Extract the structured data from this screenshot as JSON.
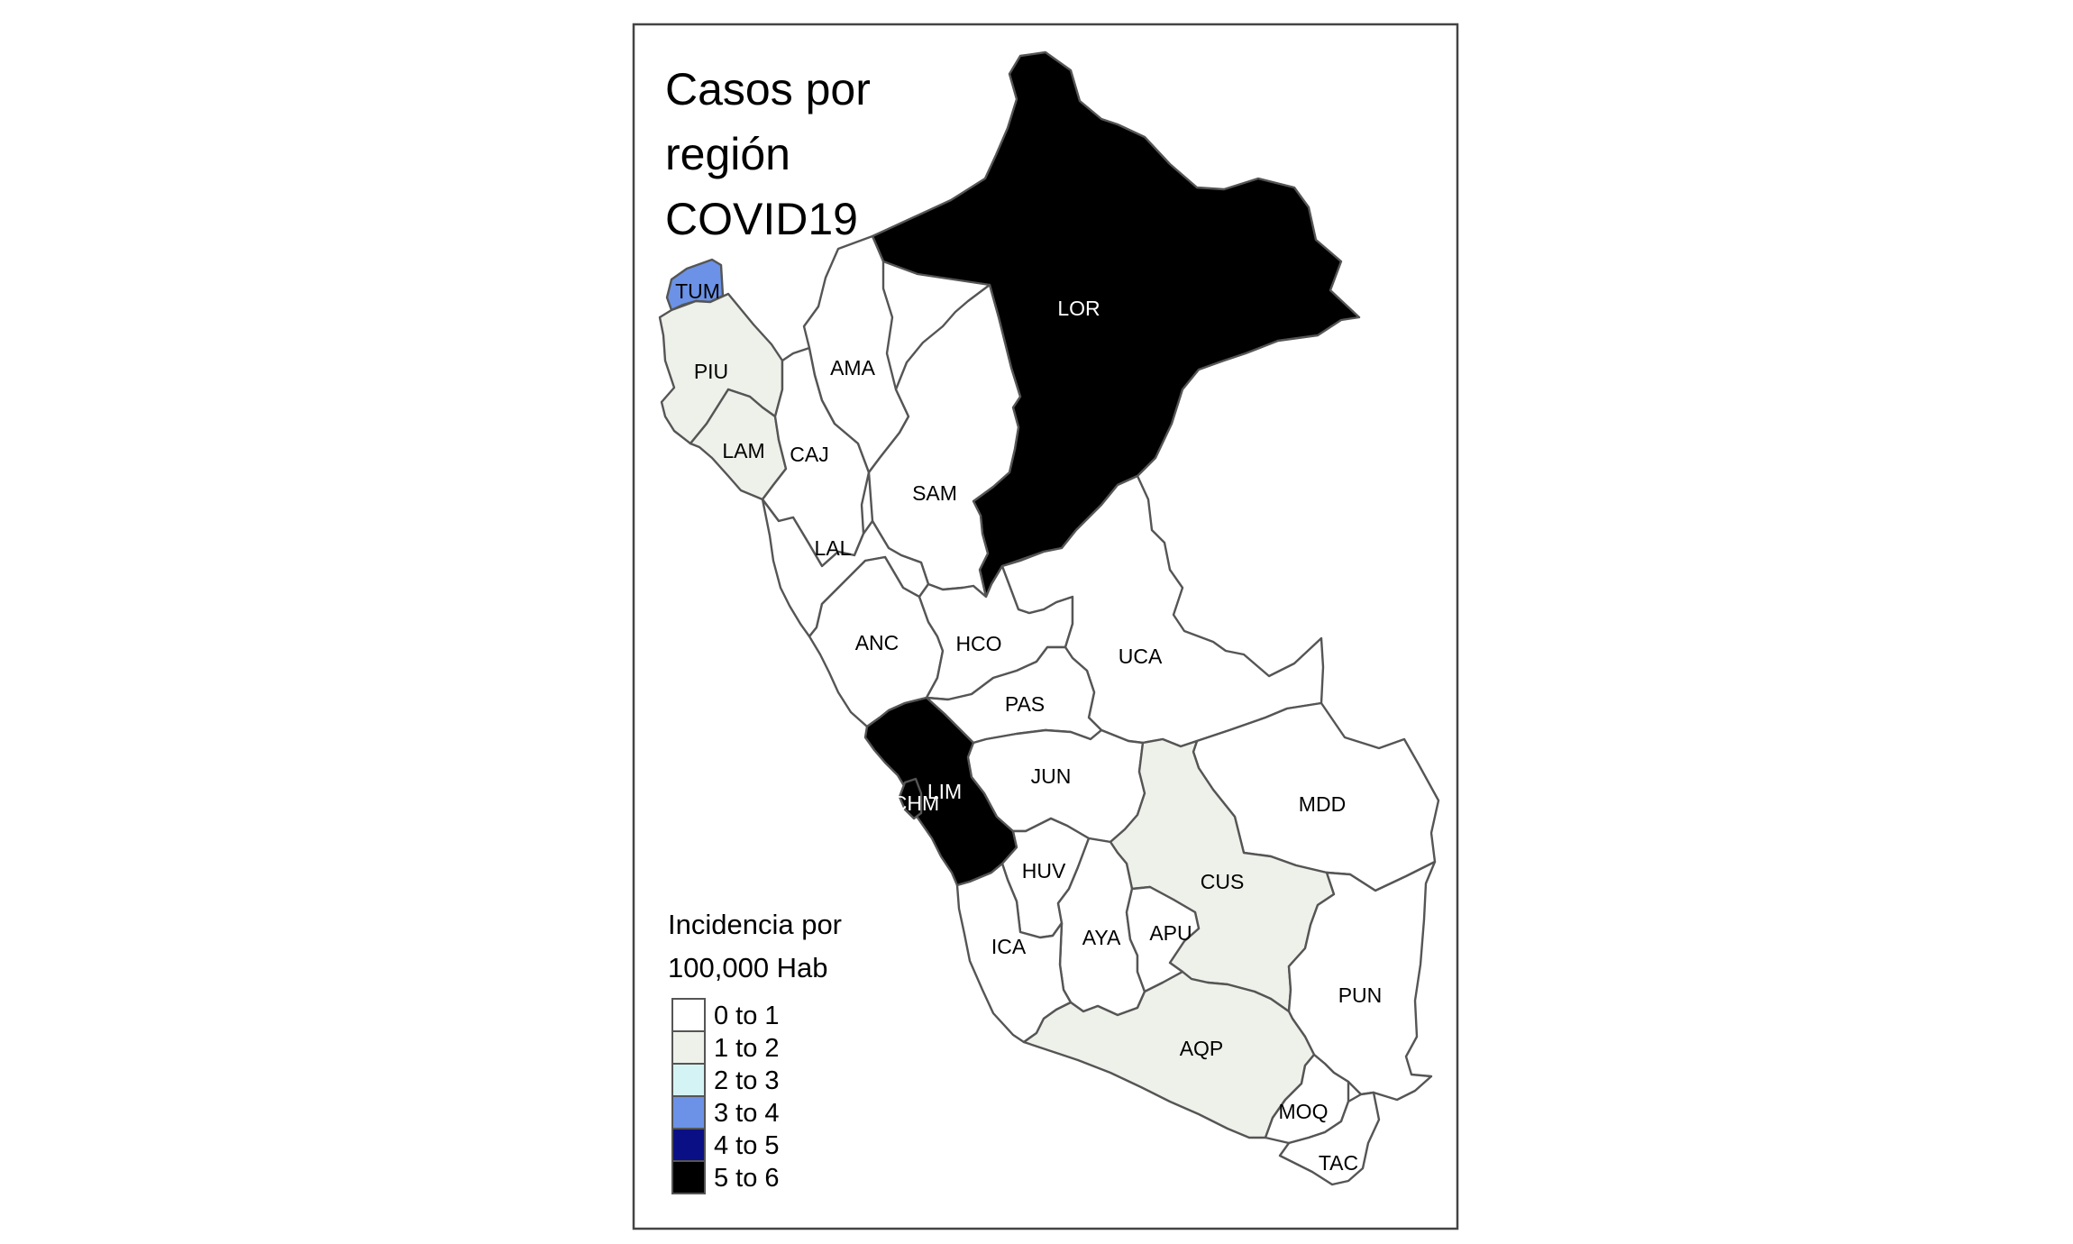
{
  "map": {
    "title_lines": [
      "Casos por",
      "región",
      "COVID19"
    ],
    "legend": {
      "title_lines": [
        "Incidencia por",
        "100,000 Hab"
      ],
      "classes": [
        {
          "label": "0 to 1",
          "color": "#ffffff"
        },
        {
          "label": "1 to 2",
          "color": "#eef1ea"
        },
        {
          "label": "2 to 3",
          "color": "#d4f3f5"
        },
        {
          "label": "3 to 4",
          "color": "#6b92e6"
        },
        {
          "label": "4 to 5",
          "color": "#0b0f86"
        },
        {
          "label": "5 to 6",
          "color": "#000000"
        }
      ]
    },
    "regions": [
      {
        "code": "TUM",
        "class": 3
      },
      {
        "code": "PIU",
        "class": 1
      },
      {
        "code": "LAM",
        "class": 1
      },
      {
        "code": "CAJ",
        "class": 0
      },
      {
        "code": "AMA",
        "class": 0
      },
      {
        "code": "LOR",
        "class": 5
      },
      {
        "code": "SAM",
        "class": 0
      },
      {
        "code": "LAL",
        "class": 0
      },
      {
        "code": "ANC",
        "class": 0
      },
      {
        "code": "HCO",
        "class": 0
      },
      {
        "code": "UCA",
        "class": 0
      },
      {
        "code": "PAS",
        "class": 0
      },
      {
        "code": "LIM",
        "class": 5
      },
      {
        "code": "CHM",
        "class": 5
      },
      {
        "code": "JUN",
        "class": 0
      },
      {
        "code": "MDD",
        "class": 0
      },
      {
        "code": "CUS",
        "class": 1
      },
      {
        "code": "HUV",
        "class": 0
      },
      {
        "code": "AYA",
        "class": 0
      },
      {
        "code": "APU",
        "class": 0
      },
      {
        "code": "ICA",
        "class": 0
      },
      {
        "code": "PUN",
        "class": 0
      },
      {
        "code": "AQP",
        "class": 1
      },
      {
        "code": "MOQ",
        "class": 0
      },
      {
        "code": "TAC",
        "class": 0
      }
    ]
  }
}
